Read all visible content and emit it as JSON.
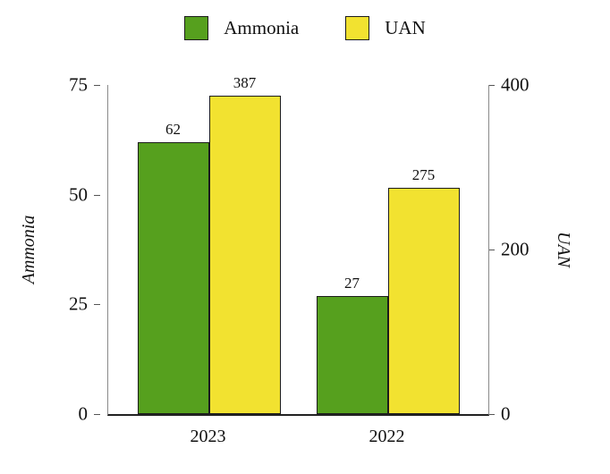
{
  "chart_data": {
    "type": "bar",
    "categories": [
      "2023",
      "2022"
    ],
    "series": [
      {
        "name": "Ammonia",
        "axis": "left",
        "color": "#56a01e",
        "values": [
          62,
          27
        ]
      },
      {
        "name": "UAN",
        "axis": "right",
        "color": "#f2e230",
        "values": [
          387,
          275
        ]
      }
    ],
    "left_axis": {
      "label": "Ammonia",
      "ticks": [
        0,
        25,
        50,
        75
      ],
      "min": 0,
      "max": 75
    },
    "right_axis": {
      "label": "UAN",
      "ticks": [
        0,
        200,
        400
      ],
      "min": 0,
      "max": 400
    },
    "legend": {
      "position": "top",
      "items": [
        {
          "label": "Ammonia",
          "color": "#56a01e"
        },
        {
          "label": "UAN",
          "color": "#f2e230"
        }
      ]
    },
    "title": "",
    "xlabel": "",
    "grid": false,
    "bar_border_color": "#1c1c1c"
  }
}
